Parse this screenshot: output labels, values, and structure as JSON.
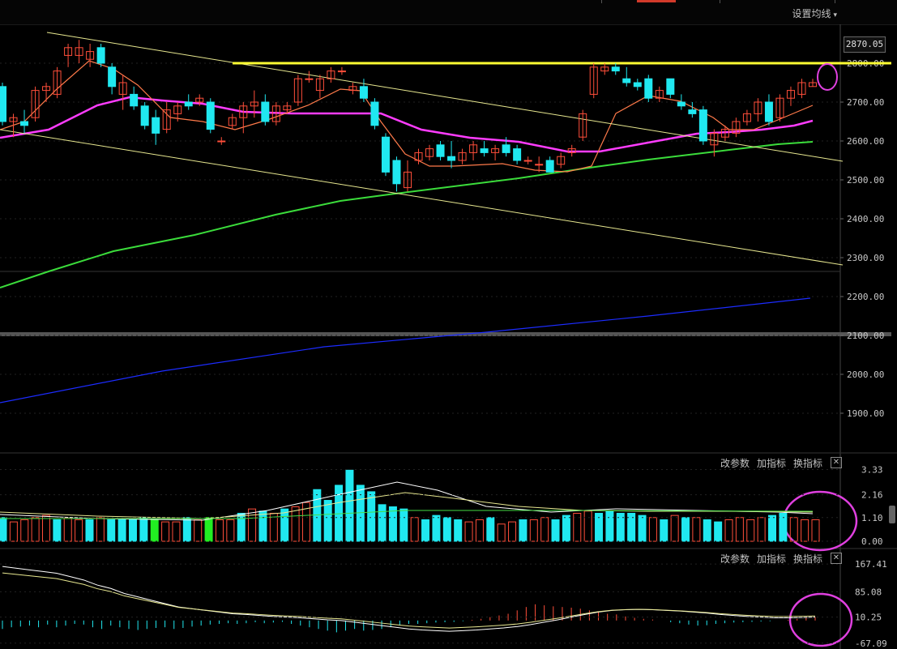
{
  "toolbar": {
    "ma_settings_label": "设置均线",
    "caret": "▾"
  },
  "price_marker": "2870.05",
  "price_axis_ticks": [
    "2800.00",
    "2700.00",
    "2600.00",
    "2500.00",
    "2400.00",
    "2300.00",
    "2200.00",
    "2100.00",
    "2000.00",
    "1900.00"
  ],
  "panels": [
    {
      "buttons": [
        "改参数",
        "加指标",
        "换指标"
      ],
      "close": "✕",
      "axis_ticks": [
        "3.33",
        "2.16",
        "1.10",
        "0.00"
      ]
    },
    {
      "buttons": [
        "改参数",
        "加指标",
        "换指标"
      ],
      "close": "✕",
      "axis_ticks": [
        "167.41",
        "85.08",
        "10.25",
        "-67.09"
      ]
    }
  ],
  "colors": {
    "up": "#ff4e3a",
    "down": "#20e8f0",
    "ma5": "#ff7a4a",
    "ma20": "#ff3cff",
    "ma60": "#3bdc3b",
    "ma250": "#1c2cff",
    "resistance": "#ffff33",
    "trend": "#e8e890",
    "circle": "#e040e0"
  },
  "chart_data": {
    "type": "candlestick",
    "price_axis": {
      "min": 1800,
      "max": 2900
    },
    "candles": [
      {
        "o": 2740,
        "h": 2750,
        "l": 2640,
        "c": 2650
      },
      {
        "o": 2650,
        "h": 2670,
        "l": 2610,
        "c": 2660
      },
      {
        "o": 2650,
        "h": 2680,
        "l": 2620,
        "c": 2640
      },
      {
        "o": 2660,
        "h": 2740,
        "l": 2650,
        "c": 2730
      },
      {
        "o": 2730,
        "h": 2750,
        "l": 2700,
        "c": 2740
      },
      {
        "o": 2720,
        "h": 2790,
        "l": 2710,
        "c": 2780
      },
      {
        "o": 2820,
        "h": 2850,
        "l": 2790,
        "c": 2840
      },
      {
        "o": 2820,
        "h": 2860,
        "l": 2800,
        "c": 2840
      },
      {
        "o": 2810,
        "h": 2850,
        "l": 2790,
        "c": 2830
      },
      {
        "o": 2840,
        "h": 2850,
        "l": 2790,
        "c": 2800
      },
      {
        "o": 2790,
        "h": 2800,
        "l": 2720,
        "c": 2740
      },
      {
        "o": 2720,
        "h": 2770,
        "l": 2680,
        "c": 2750
      },
      {
        "o": 2720,
        "h": 2740,
        "l": 2680,
        "c": 2690
      },
      {
        "o": 2690,
        "h": 2700,
        "l": 2630,
        "c": 2640
      },
      {
        "o": 2660,
        "h": 2680,
        "l": 2590,
        "c": 2620
      },
      {
        "o": 2630,
        "h": 2700,
        "l": 2620,
        "c": 2680
      },
      {
        "o": 2670,
        "h": 2700,
        "l": 2650,
        "c": 2690
      },
      {
        "o": 2700,
        "h": 2720,
        "l": 2680,
        "c": 2690
      },
      {
        "o": 2700,
        "h": 2720,
        "l": 2690,
        "c": 2710
      },
      {
        "o": 2700,
        "h": 2710,
        "l": 2620,
        "c": 2630
      },
      {
        "o": 2600,
        "h": 2610,
        "l": 2590,
        "c": 2600
      },
      {
        "o": 2640,
        "h": 2670,
        "l": 2630,
        "c": 2660
      },
      {
        "o": 2660,
        "h": 2700,
        "l": 2620,
        "c": 2690
      },
      {
        "o": 2690,
        "h": 2730,
        "l": 2660,
        "c": 2700
      },
      {
        "o": 2700,
        "h": 2720,
        "l": 2640,
        "c": 2650
      },
      {
        "o": 2650,
        "h": 2700,
        "l": 2640,
        "c": 2690
      },
      {
        "o": 2680,
        "h": 2700,
        "l": 2670,
        "c": 2690
      },
      {
        "o": 2700,
        "h": 2770,
        "l": 2690,
        "c": 2760
      },
      {
        "o": 2760,
        "h": 2780,
        "l": 2750,
        "c": 2760
      },
      {
        "o": 2730,
        "h": 2770,
        "l": 2710,
        "c": 2760
      },
      {
        "o": 2760,
        "h": 2790,
        "l": 2750,
        "c": 2780
      },
      {
        "o": 2780,
        "h": 2790,
        "l": 2770,
        "c": 2780
      },
      {
        "o": 2730,
        "h": 2750,
        "l": 2720,
        "c": 2740
      },
      {
        "o": 2740,
        "h": 2760,
        "l": 2700,
        "c": 2710
      },
      {
        "o": 2700,
        "h": 2710,
        "l": 2630,
        "c": 2640
      },
      {
        "o": 2610,
        "h": 2620,
        "l": 2510,
        "c": 2520
      },
      {
        "o": 2550,
        "h": 2560,
        "l": 2470,
        "c": 2490
      },
      {
        "o": 2480,
        "h": 2550,
        "l": 2470,
        "c": 2520
      },
      {
        "o": 2550,
        "h": 2580,
        "l": 2540,
        "c": 2570
      },
      {
        "o": 2560,
        "h": 2590,
        "l": 2550,
        "c": 2580
      },
      {
        "o": 2590,
        "h": 2600,
        "l": 2550,
        "c": 2560
      },
      {
        "o": 2560,
        "h": 2600,
        "l": 2530,
        "c": 2550
      },
      {
        "o": 2550,
        "h": 2580,
        "l": 2540,
        "c": 2570
      },
      {
        "o": 2570,
        "h": 2600,
        "l": 2550,
        "c": 2590
      },
      {
        "o": 2580,
        "h": 2600,
        "l": 2560,
        "c": 2570
      },
      {
        "o": 2570,
        "h": 2590,
        "l": 2550,
        "c": 2580
      },
      {
        "o": 2590,
        "h": 2610,
        "l": 2560,
        "c": 2570
      },
      {
        "o": 2580,
        "h": 2590,
        "l": 2540,
        "c": 2550
      },
      {
        "o": 2550,
        "h": 2560,
        "l": 2540,
        "c": 2550
      },
      {
        "o": 2540,
        "h": 2560,
        "l": 2520,
        "c": 2540
      },
      {
        "o": 2550,
        "h": 2560,
        "l": 2520,
        "c": 2520
      },
      {
        "o": 2540,
        "h": 2570,
        "l": 2530,
        "c": 2560
      },
      {
        "o": 2570,
        "h": 2590,
        "l": 2560,
        "c": 2580
      },
      {
        "o": 2610,
        "h": 2680,
        "l": 2600,
        "c": 2670
      },
      {
        "o": 2720,
        "h": 2800,
        "l": 2710,
        "c": 2790
      },
      {
        "o": 2780,
        "h": 2800,
        "l": 2770,
        "c": 2790
      },
      {
        "o": 2790,
        "h": 2800,
        "l": 2770,
        "c": 2780
      },
      {
        "o": 2760,
        "h": 2790,
        "l": 2740,
        "c": 2750
      },
      {
        "o": 2750,
        "h": 2760,
        "l": 2730,
        "c": 2740
      },
      {
        "o": 2760,
        "h": 2770,
        "l": 2700,
        "c": 2710
      },
      {
        "o": 2710,
        "h": 2740,
        "l": 2700,
        "c": 2730
      },
      {
        "o": 2760,
        "h": 2760,
        "l": 2710,
        "c": 2720
      },
      {
        "o": 2700,
        "h": 2720,
        "l": 2680,
        "c": 2690
      },
      {
        "o": 2680,
        "h": 2700,
        "l": 2660,
        "c": 2670
      },
      {
        "o": 2680,
        "h": 2690,
        "l": 2590,
        "c": 2600
      },
      {
        "o": 2590,
        "h": 2630,
        "l": 2560,
        "c": 2620
      },
      {
        "o": 2610,
        "h": 2640,
        "l": 2600,
        "c": 2630
      },
      {
        "o": 2620,
        "h": 2660,
        "l": 2610,
        "c": 2650
      },
      {
        "o": 2650,
        "h": 2680,
        "l": 2640,
        "c": 2670
      },
      {
        "o": 2670,
        "h": 2710,
        "l": 2650,
        "c": 2700
      },
      {
        "o": 2700,
        "h": 2720,
        "l": 2640,
        "c": 2650
      },
      {
        "o": 2660,
        "h": 2720,
        "l": 2650,
        "c": 2710
      },
      {
        "o": 2710,
        "h": 2740,
        "l": 2690,
        "c": 2730
      },
      {
        "o": 2720,
        "h": 2760,
        "l": 2710,
        "c": 2750
      },
      {
        "o": 2740,
        "h": 2760,
        "l": 2740,
        "c": 2750
      }
    ],
    "resistance_level": 2800,
    "indicator1": {
      "range": [
        -0.3,
        3.5
      ],
      "bars": [
        1.1,
        0.9,
        1.0,
        1.1,
        1.2,
        1.0,
        1.1,
        1.0,
        1.0,
        1.1,
        1.0,
        1.0,
        1.0,
        1.1,
        1.0,
        0.9,
        0.9,
        1.1,
        1.0,
        1.1,
        1.0,
        1.0,
        1.3,
        1.5,
        1.4,
        1.3,
        1.5,
        1.6,
        1.8,
        2.4,
        1.9,
        2.6,
        3.3,
        2.6,
        2.3,
        1.7,
        1.6,
        1.5,
        1.1,
        1.0,
        1.2,
        1.1,
        1.0,
        0.9,
        1.0,
        1.1,
        0.8,
        0.9,
        1.0,
        1.0,
        1.1,
        1.0,
        1.2,
        1.3,
        1.4,
        1.3,
        1.4,
        1.3,
        1.3,
        1.2,
        1.1,
        1.0,
        1.2,
        1.1,
        1.1,
        1.0,
        0.9,
        1.0,
        1.1,
        1.0,
        1.1,
        1.2,
        1.3,
        1.1,
        1.0,
        1.0
      ],
      "bar_colors": [
        "d",
        "u",
        "u",
        "u",
        "u",
        "d",
        "u",
        "u",
        "d",
        "u",
        "d",
        "d",
        "d",
        "d",
        "g",
        "u",
        "u",
        "d",
        "u",
        "g",
        "u",
        "u",
        "d",
        "u",
        "d",
        "u",
        "d",
        "u",
        "u",
        "d",
        "d",
        "d",
        "d",
        "d",
        "d",
        "d",
        "d",
        "d",
        "u",
        "d",
        "d",
        "d",
        "d",
        "u",
        "u",
        "d",
        "u",
        "u",
        "d",
        "u",
        "u",
        "d",
        "d",
        "u",
        "u",
        "d",
        "d",
        "d",
        "d",
        "d",
        "u",
        "d",
        "u",
        "d",
        "u",
        "d",
        "d",
        "u",
        "u",
        "u",
        "u",
        "d",
        "d",
        "u",
        "u",
        "u"
      ]
    },
    "indicator2": {
      "range": [
        -70,
        170
      ],
      "bars": [
        -25,
        -20,
        -18,
        -15,
        -20,
        -12,
        -20,
        -15,
        -10,
        -12,
        -20,
        -25,
        -15,
        -20,
        -25,
        -28,
        -25,
        -22,
        -20,
        -25,
        -22,
        -18,
        -15,
        -12,
        -10,
        -8,
        -10,
        -8,
        -5,
        -8,
        -6,
        -4,
        -10,
        -15,
        -20,
        -25,
        -30,
        -35,
        -30,
        -25,
        -30,
        -28,
        -25,
        -20,
        -15,
        -10,
        -10,
        -8,
        -6,
        -5,
        -4,
        -2,
        2,
        5,
        10,
        15,
        20,
        30,
        40,
        48,
        45,
        42,
        40,
        38,
        35,
        30,
        25,
        20,
        18,
        12,
        8,
        5,
        3,
        0,
        -5,
        -8,
        -12,
        -15,
        -14,
        -10,
        -8,
        -6,
        -5,
        -4,
        -3,
        -2,
        0,
        2,
        5,
        8,
        10
      ],
      "slow_line": [
        160,
        155,
        150,
        145,
        140,
        130,
        120,
        105,
        95,
        80,
        70,
        60,
        50,
        40,
        35,
        30,
        25,
        20,
        18,
        15,
        12,
        10,
        8,
        5,
        2,
        0,
        -5,
        -10,
        -15,
        -20,
        -25,
        -28,
        -30,
        -32,
        -30,
        -28,
        -25,
        -22,
        -18,
        -12,
        -5,
        2,
        10,
        18,
        25,
        30,
        32,
        33,
        32,
        30,
        28,
        25,
        22,
        18,
        15,
        12,
        10,
        8,
        8,
        9,
        10
      ]
    }
  }
}
